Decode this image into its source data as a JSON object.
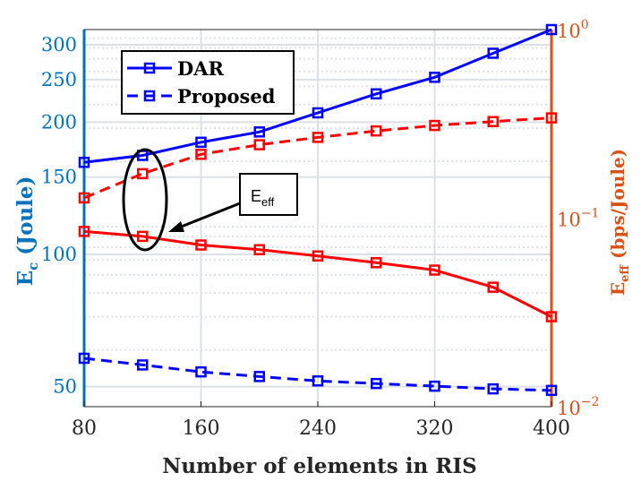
{
  "chart_data": {
    "type": "line",
    "xlabel": "Number of elements in RIS",
    "ylabel_left": "E_c (Joule)",
    "ylabel_left_main": "E",
    "ylabel_left_sub": "c",
    "ylabel_left_rest": " (Joule)",
    "ylabel_right": "E_eff (bps/Joule)",
    "ylabel_right_main": "E",
    "ylabel_right_sub": "eff",
    "ylabel_right_rest": " (bps/Joule)",
    "x_ticks": [
      80,
      160,
      240,
      320,
      400
    ],
    "x_range": [
      80,
      400
    ],
    "x": [
      80,
      120,
      160,
      200,
      240,
      280,
      320,
      360,
      400
    ],
    "y_left": {
      "scale": "log",
      "range": [
        45,
        325
      ],
      "ticks": [
        50,
        100,
        150,
        200,
        250,
        300
      ],
      "series": [
        {
          "name": "DAR",
          "style": "solid",
          "values": [
            162,
            168,
            180,
            190,
            210,
            232,
            253,
            287,
            325
          ]
        },
        {
          "name": "Proposed",
          "style": "dashed",
          "values": [
            58,
            56,
            54,
            52.7,
            51.5,
            50.8,
            50.1,
            49.4,
            49
          ]
        }
      ]
    },
    "y_right": {
      "scale": "log",
      "range": [
        0.01,
        1
      ],
      "ticks": [
        {
          "base": "10",
          "exp": "0"
        },
        {
          "base": "10",
          "exp": "−1"
        },
        {
          "base": "10",
          "exp": "−2"
        }
      ],
      "series": [
        {
          "style": "dashed",
          "values": [
            0.128,
            0.172,
            0.218,
            0.245,
            0.268,
            0.29,
            0.31,
            0.325,
            0.34
          ]
        },
        {
          "style": "solid",
          "values": [
            0.085,
            0.08,
            0.072,
            0.068,
            0.063,
            0.058,
            0.053,
            0.043,
            0.03
          ]
        }
      ]
    },
    "legend": {
      "position": "top-left",
      "entries": [
        {
          "label": "DAR",
          "style": "solid"
        },
        {
          "label": "Proposed",
          "style": "dashed"
        }
      ]
    },
    "annotation": {
      "main": "E",
      "sub": "eff"
    },
    "grid": true,
    "colors": {
      "blue_series": "#0000FF",
      "red_series": "#FF0000",
      "left_axis": "#0072BD",
      "right_axis": "#D95319",
      "grid": "#DCE1E7"
    }
  }
}
